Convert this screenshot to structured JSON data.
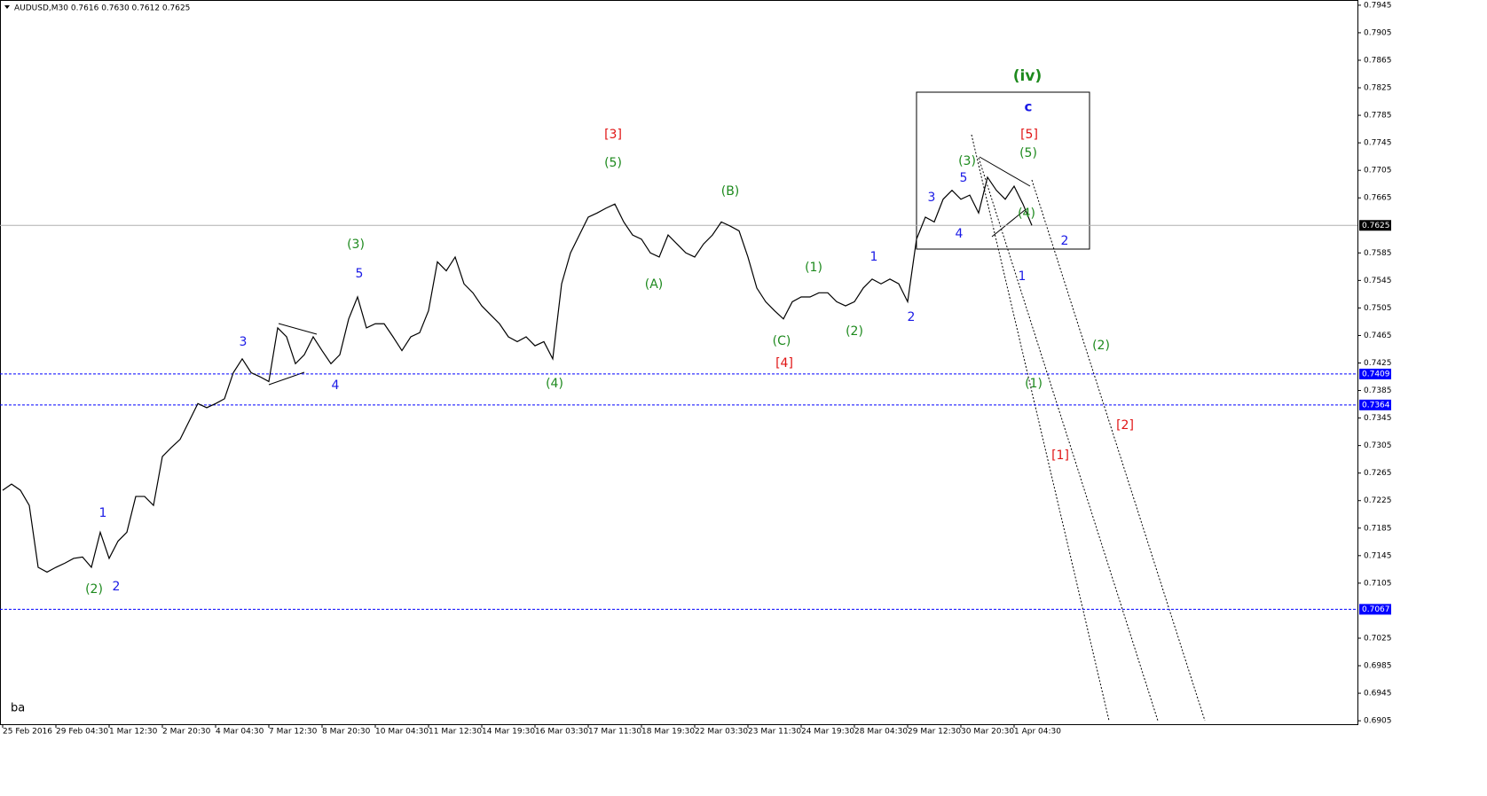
{
  "chart_data": {
    "type": "line",
    "title": "AUDUSD,M30 0.7616 0.7630 0.7612 0.7625",
    "corner_text": "ba",
    "series": [
      {
        "name": "AUDUSD",
        "color": "#000000",
        "values": [
          0.724,
          0.7249,
          0.724,
          0.7218,
          0.7128,
          0.7121,
          0.7128,
          0.7134,
          0.7141,
          0.7143,
          0.7128,
          0.7179,
          0.7141,
          0.7166,
          0.7179,
          0.7231,
          0.7231,
          0.7218,
          0.7289,
          0.7302,
          0.7314,
          0.734,
          0.7366,
          0.736,
          0.7366,
          0.7373,
          0.7411,
          0.7431,
          0.7411,
          0.7405,
          0.7398,
          0.7476,
          0.7463,
          0.7424,
          0.7437,
          0.7463,
          0.7443,
          0.7424,
          0.7437,
          0.7489,
          0.7521,
          0.7476,
          0.7482,
          0.7482,
          0.7463,
          0.7443,
          0.7463,
          0.7469,
          0.7501,
          0.7572,
          0.7559,
          0.7579,
          0.754,
          0.7527,
          0.7508,
          0.7495,
          0.7482,
          0.7463,
          0.7456,
          0.7463,
          0.745,
          0.7456,
          0.7431,
          0.754,
          0.7585,
          0.7611,
          0.7637,
          0.7643,
          0.765,
          0.7656,
          0.763,
          0.7611,
          0.7605,
          0.7585,
          0.7579,
          0.7611,
          0.7598,
          0.7585,
          0.7579,
          0.7598,
          0.7611,
          0.763,
          0.7624,
          0.7617,
          0.7579,
          0.7534,
          0.7514,
          0.7501,
          0.7489,
          0.7514,
          0.7521,
          0.7521,
          0.7527,
          0.7527,
          0.7514,
          0.7508,
          0.7514,
          0.7534,
          0.7547,
          0.754,
          0.7547,
          0.754,
          0.7514,
          0.7605,
          0.7637,
          0.763,
          0.7663,
          0.7676,
          0.7663,
          0.7669,
          0.7643,
          0.7695,
          0.7676,
          0.7663,
          0.7682,
          0.7656,
          0.7625
        ]
      }
    ],
    "ylim": [
      0.69,
      0.795
    ],
    "yticks": [
      0.7945,
      0.7905,
      0.7865,
      0.7825,
      0.7785,
      0.7745,
      0.7705,
      0.7665,
      0.7585,
      0.7545,
      0.7505,
      0.7465,
      0.7425,
      0.7385,
      0.7345,
      0.7305,
      0.7265,
      0.7225,
      0.7185,
      0.7145,
      0.7105,
      0.7025,
      0.6985,
      0.6945,
      0.6905
    ],
    "xticks": [
      {
        "value": 0,
        "label": "25 Feb 2016"
      },
      {
        "value": 6,
        "label": "29 Feb 04:30"
      },
      {
        "value": 12,
        "label": "1 Mar 12:30"
      },
      {
        "value": 18,
        "label": "2 Mar 20:30"
      },
      {
        "value": 24,
        "label": "4 Mar 04:30"
      },
      {
        "value": 30,
        "label": "7 Mar 12:30"
      },
      {
        "value": 36,
        "label": "8 Mar 20:30"
      },
      {
        "value": 42,
        "label": "10 Mar 04:30"
      },
      {
        "value": 48,
        "label": "11 Mar 12:30"
      },
      {
        "value": 54,
        "label": "14 Mar 19:30"
      },
      {
        "value": 60,
        "label": "16 Mar 03:30"
      },
      {
        "value": 66,
        "label": "17 Mar 11:30"
      },
      {
        "value": 72,
        "label": "18 Mar 19:30"
      },
      {
        "value": 78,
        "label": "22 Mar 03:30"
      },
      {
        "value": 84,
        "label": "23 Mar 11:30"
      },
      {
        "value": 90,
        "label": "24 Mar 19:30"
      },
      {
        "value": 96,
        "label": "28 Mar 04:30"
      },
      {
        "value": 102,
        "label": "29 Mar 12:30"
      },
      {
        "value": 108,
        "label": "30 Mar 20:30"
      },
      {
        "value": 114,
        "label": "1 Apr 04:30"
      }
    ],
    "current_price": 0.7625,
    "hlines": [
      {
        "value": 0.7409,
        "color": "#0000ff"
      },
      {
        "value": 0.7364,
        "color": "#0000ff"
      },
      {
        "value": 0.7067,
        "color": "#0000ff"
      }
    ],
    "annotations": [
      {
        "text": "(iv)",
        "color": "#1e8a1e"
      },
      {
        "text": "c",
        "color": "#1a1ae6"
      },
      {
        "text": "[5]",
        "color": "#e01414"
      },
      {
        "text": "(5)",
        "color": "#1e8a1e"
      },
      {
        "text": "(3)",
        "color": "#1e8a1e"
      },
      {
        "text": "5",
        "color": "#1a1ae6"
      },
      {
        "text": "3",
        "color": "#1a1ae6"
      },
      {
        "text": "(4)",
        "color": "#1e8a1e"
      },
      {
        "text": "4",
        "color": "#1a1ae6"
      },
      {
        "text": "2",
        "color": "#1a1ae6"
      },
      {
        "text": "1",
        "color": "#1a1ae6"
      },
      {
        "text": "(2)",
        "color": "#1e8a1e"
      },
      {
        "text": "(1)",
        "color": "#1e8a1e"
      },
      {
        "text": "[2]",
        "color": "#e01414"
      },
      {
        "text": "[1]",
        "color": "#e01414"
      },
      {
        "text": "1",
        "color": "#1a1ae6"
      },
      {
        "text": "2",
        "color": "#1a1ae6"
      },
      {
        "text": "(1)",
        "color": "#1e8a1e"
      },
      {
        "text": "(2)",
        "color": "#1e8a1e"
      },
      {
        "text": "(C)",
        "color": "#1e8a1e"
      },
      {
        "text": "[4]",
        "color": "#e01414"
      },
      {
        "text": "(B)",
        "color": "#1e8a1e"
      },
      {
        "text": "(A)",
        "color": "#1e8a1e"
      },
      {
        "text": "(5)",
        "color": "#1e8a1e"
      },
      {
        "text": "[3]",
        "color": "#e01414"
      },
      {
        "text": "(4)",
        "color": "#1e8a1e"
      },
      {
        "text": "(3)",
        "color": "#1e8a1e"
      },
      {
        "text": "5",
        "color": "#1a1ae6"
      },
      {
        "text": "4",
        "color": "#1a1ae6"
      },
      {
        "text": "3",
        "color": "#1a1ae6"
      },
      {
        "text": "1",
        "color": "#1a1ae6"
      },
      {
        "text": "2",
        "color": "#1a1ae6"
      },
      {
        "text": "(2)",
        "color": "#1e8a1e"
      }
    ]
  }
}
